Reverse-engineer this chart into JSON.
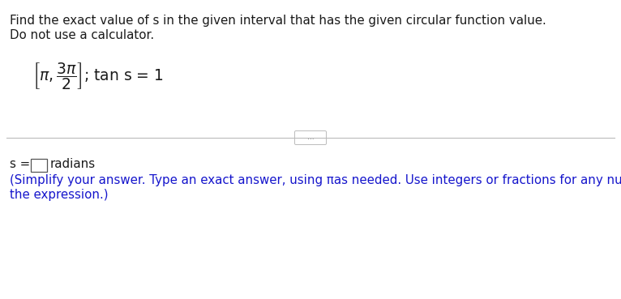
{
  "title_line1": "Find the exact value of s in the given interval that has the given circular function value.",
  "title_line2": "Do not use a calculator.",
  "hint_line1": "(Simplify your answer. Type an exact answer, using πas needed. Use integers or fractions for any numbers in",
  "hint_line2": "the expression.)",
  "bg_color": "#ffffff",
  "text_color_black": "#1a1a1a",
  "text_color_blue": "#1515cc",
  "font_size_title": 10.8,
  "font_size_interval": 13.5,
  "font_size_answer": 10.8,
  "font_size_hint": 10.8,
  "fig_width": 7.66,
  "fig_height": 3.69,
  "dpi": 100
}
